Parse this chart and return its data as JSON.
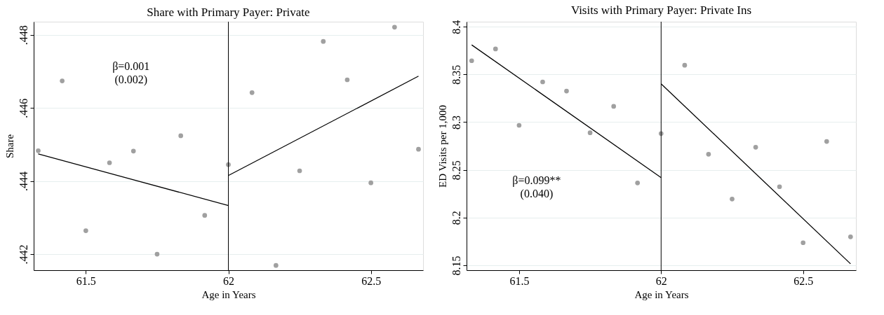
{
  "chart_data": [
    {
      "type": "scatter",
      "title": "Share with Primary Payer: Private",
      "xlabel": "Age in Years",
      "ylabel": "Share",
      "xlim": [
        61.317,
        62.683
      ],
      "xticks": [
        61.5,
        62,
        62.5
      ],
      "ylim": [
        0.44156,
        0.44836
      ],
      "yticks": [
        {
          "value": 0.442,
          "label": ".442"
        },
        {
          "value": 0.444,
          "label": ".444"
        },
        {
          "value": 0.446,
          "label": ".446"
        },
        {
          "value": 0.448,
          "label": ".448"
        }
      ],
      "grid": "y",
      "annotations": [
        "β=0.001",
        "(0.002)"
      ],
      "ref_lines": [
        {
          "axis": "x",
          "value": 62,
          "color": "#000000"
        }
      ],
      "series": [
        {
          "marker": "circle",
          "color": "#a0a0a0",
          "x": [
            61.333,
            61.417,
            61.5,
            61.583,
            61.667,
            61.75,
            61.833,
            61.917,
            62,
            62.083,
            62.167,
            62.25,
            62.333,
            62.417,
            62.5,
            62.583,
            62.667
          ],
          "values": [
            0.44483,
            0.44674,
            0.44264,
            0.4445,
            0.44482,
            0.442,
            0.44524,
            0.44306,
            0.44445,
            0.44642,
            0.44169,
            0.44428,
            0.44782,
            0.44677,
            0.44395,
            0.44821,
            0.44487
          ]
        },
        {
          "type": "line",
          "marker": "none",
          "line_style": "solid",
          "color": "#000000",
          "x": [
            61.333,
            62
          ],
          "values": [
            0.44474,
            0.44333
          ]
        },
        {
          "type": "line",
          "marker": "none",
          "line_style": "solid",
          "color": "#000000",
          "x": [
            62,
            62.667
          ],
          "values": [
            0.44415,
            0.44687
          ]
        }
      ]
    },
    {
      "type": "scatter",
      "title": "Visits with Primary Payer: Private Ins",
      "xlabel": "Age in Years",
      "ylabel": "ED Visits per 1,000",
      "xlim": [
        61.315,
        62.686
      ],
      "xticks": [
        61.5,
        62,
        62.5
      ],
      "ylim": [
        8.1448,
        8.4053
      ],
      "yticks": [
        8.15,
        8.2,
        8.25,
        8.3,
        8.35,
        8.4
      ],
      "grid": "y",
      "annotations": [
        "β=0.099**",
        "(0.040)"
      ],
      "ref_lines": [
        {
          "axis": "x",
          "value": 62,
          "color": "#000000"
        }
      ],
      "series": [
        {
          "marker": "circle",
          "color": "#a0a0a0",
          "x": [
            61.333,
            61.417,
            61.5,
            61.583,
            61.667,
            61.75,
            61.833,
            61.917,
            62,
            62.083,
            62.167,
            62.25,
            62.333,
            62.417,
            62.5,
            62.583,
            62.667
          ],
          "values": [
            8.3644,
            8.3767,
            8.2967,
            8.3422,
            8.3326,
            8.2889,
            8.3166,
            8.2363,
            8.288,
            8.3597,
            8.2664,
            8.2194,
            8.2737,
            8.2323,
            8.1736,
            8.2798,
            8.1798
          ]
        },
        {
          "type": "line",
          "marker": "none",
          "line_style": "solid",
          "color": "#000000",
          "x": [
            61.333,
            62
          ],
          "values": [
            8.381,
            8.2419
          ]
        },
        {
          "type": "line",
          "marker": "none",
          "line_style": "solid",
          "color": "#000000",
          "x": [
            62,
            62.667
          ],
          "values": [
            8.3402,
            8.1515
          ]
        }
      ]
    }
  ]
}
